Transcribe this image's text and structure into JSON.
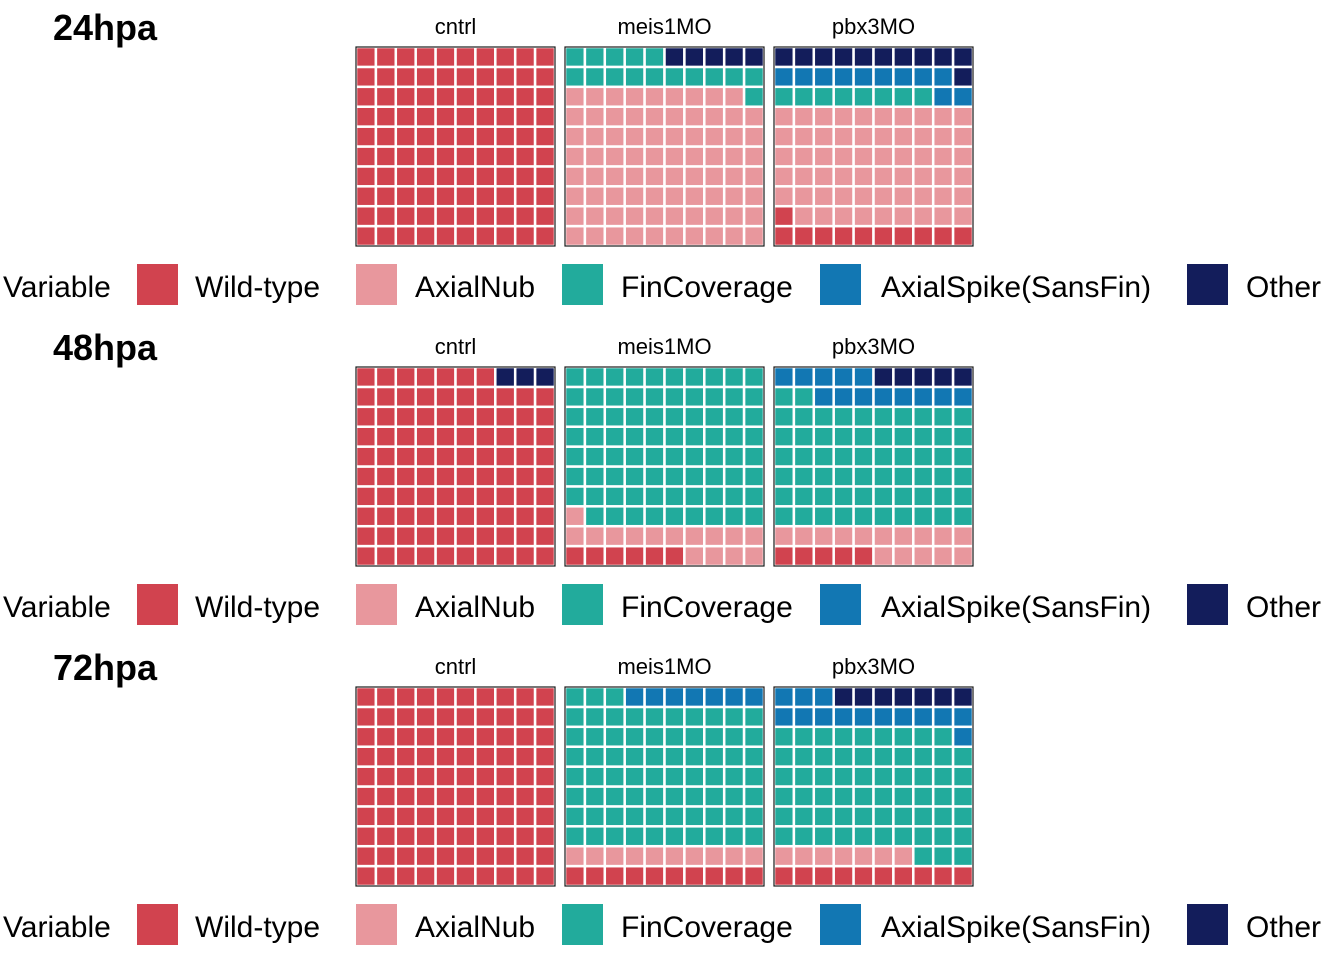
{
  "legend": {
    "title": "Variable",
    "items": [
      {
        "label": "Wild-type",
        "color": "#d1434f"
      },
      {
        "label": "AxialNub",
        "color": "#e8979d"
      },
      {
        "label": "FinCoverage",
        "color": "#22ab9c"
      },
      {
        "label": "AxialSpike(SansFin)",
        "color": "#1277b3"
      },
      {
        "label": "Other",
        "color": "#131d5b"
      }
    ]
  },
  "chart_data": [
    {
      "type": "waffle",
      "title": "24hpa",
      "facets": [
        {
          "label": "cntrl",
          "counts": {
            "Wild-type": 100,
            "AxialNub": 0,
            "FinCoverage": 0,
            "AxialSpike(SansFin)": 0,
            "Other": 0
          }
        },
        {
          "label": "meis1MO",
          "counts": {
            "Wild-type": 0,
            "AxialNub": 79,
            "FinCoverage": 16,
            "AxialSpike(SansFin)": 0,
            "Other": 5
          }
        },
        {
          "label": "pbx3MO",
          "counts": {
            "Wild-type": 11,
            "AxialNub": 59,
            "FinCoverage": 8,
            "AxialSpike(SansFin)": 11,
            "Other": 11
          }
        }
      ]
    },
    {
      "type": "waffle",
      "title": "48hpa",
      "facets": [
        {
          "label": "cntrl",
          "counts": {
            "Wild-type": 97,
            "AxialNub": 0,
            "FinCoverage": 0,
            "AxialSpike(SansFin)": 0,
            "Other": 3
          }
        },
        {
          "label": "meis1MO",
          "counts": {
            "Wild-type": 6,
            "AxialNub": 15,
            "FinCoverage": 79,
            "AxialSpike(SansFin)": 0,
            "Other": 0
          }
        },
        {
          "label": "pbx3MO",
          "counts": {
            "Wild-type": 5,
            "AxialNub": 15,
            "FinCoverage": 62,
            "AxialSpike(SansFin)": 13,
            "Other": 5
          }
        }
      ]
    },
    {
      "type": "waffle",
      "title": "72hpa",
      "facets": [
        {
          "label": "cntrl",
          "counts": {
            "Wild-type": 100,
            "AxialNub": 0,
            "FinCoverage": 0,
            "AxialSpike(SansFin)": 0,
            "Other": 0
          }
        },
        {
          "label": "meis1MO",
          "counts": {
            "Wild-type": 10,
            "AxialNub": 10,
            "FinCoverage": 73,
            "AxialSpike(SansFin)": 7,
            "Other": 0
          }
        },
        {
          "label": "pbx3MO",
          "counts": {
            "Wild-type": 10,
            "AxialNub": 7,
            "FinCoverage": 62,
            "AxialSpike(SansFin)": 14,
            "Other": 7
          }
        }
      ]
    }
  ]
}
